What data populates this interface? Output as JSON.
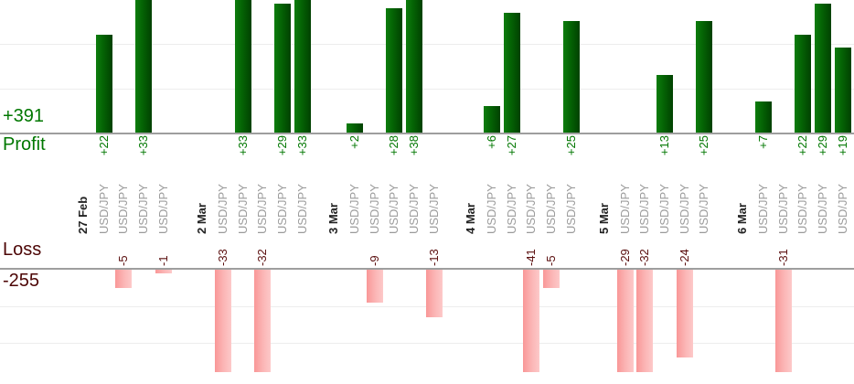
{
  "summary": {
    "profit_total": "+391",
    "profit_label": "Profit",
    "loss_label": "Loss",
    "loss_total": "-255"
  },
  "chart_data": {
    "type": "bar",
    "title": "",
    "description": "Daily trade results per instrument; profits drawn upward in green above the profit axis, losses drawn downward in pink below the loss axis; tallest bars are clipped by the visible area",
    "legend_position": "none",
    "grid": true,
    "profit_axis": {
      "label": "Profit",
      "total": "+391"
    },
    "loss_axis": {
      "label": "Loss",
      "total": "-255"
    },
    "groups": [
      {
        "date": "27 Feb",
        "trades": [
          {
            "symbol": "USD/JPY",
            "value": 22
          },
          {
            "symbol": "USD/JPY",
            "value": -5
          },
          {
            "symbol": "USD/JPY",
            "value": 33
          },
          {
            "symbol": "USD/JPY",
            "value": -1
          }
        ]
      },
      {
        "date": "2 Mar",
        "trades": [
          {
            "symbol": "USD/JPY",
            "value": -33
          },
          {
            "symbol": "USD/JPY",
            "value": 33
          },
          {
            "symbol": "USD/JPY",
            "value": -32
          },
          {
            "symbol": "USD/JPY",
            "value": 29
          },
          {
            "symbol": "USD/JPY",
            "value": 33
          }
        ]
      },
      {
        "date": "3 Mar",
        "trades": [
          {
            "symbol": "USD/JPY",
            "value": 2
          },
          {
            "symbol": "USD/JPY",
            "value": -9
          },
          {
            "symbol": "USD/JPY",
            "value": 28
          },
          {
            "symbol": "USD/JPY",
            "value": 38
          },
          {
            "symbol": "USD/JPY",
            "value": -13
          }
        ]
      },
      {
        "date": "4 Mar",
        "trades": [
          {
            "symbol": "USD/JPY",
            "value": 6
          },
          {
            "symbol": "USD/JPY",
            "value": 27
          },
          {
            "symbol": "USD/JPY",
            "value": -41
          },
          {
            "symbol": "USD/JPY",
            "value": -5
          },
          {
            "symbol": "USD/JPY",
            "value": 25
          }
        ]
      },
      {
        "date": "5 Mar",
        "trades": [
          {
            "symbol": "USD/JPY",
            "value": -29
          },
          {
            "symbol": "USD/JPY",
            "value": -32
          },
          {
            "symbol": "USD/JPY",
            "value": 13
          },
          {
            "symbol": "USD/JPY",
            "value": -24
          },
          {
            "symbol": "USD/JPY",
            "value": 25
          }
        ]
      },
      {
        "date": "6 Mar",
        "trades": [
          {
            "symbol": "USD/JPY",
            "value": 7
          },
          {
            "symbol": "USD/JPY",
            "value": -31
          },
          {
            "symbol": "USD/JPY",
            "value": 22
          },
          {
            "symbol": "USD/JPY",
            "value": 29
          },
          {
            "symbol": "USD/JPY",
            "value": 19
          }
        ]
      }
    ],
    "colors": {
      "profit_bar": "#046204",
      "loss_bar": "#fbb4b4",
      "profit_text": "#007700",
      "loss_text": "#5a0e0e",
      "date_text": "#222222",
      "symbol_text": "#9b9b9b",
      "axis_line": "#9e9e9e",
      "gridline": "#ededed"
    }
  }
}
